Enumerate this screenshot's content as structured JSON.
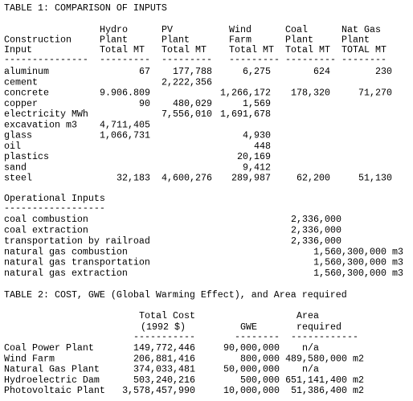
{
  "table1": {
    "title": "TABLE 1: COMPARISON OF INPUTS",
    "columns": [
      [
        "Construction",
        "Input"
      ],
      [
        "Hydro",
        "Plant",
        "Total MT"
      ],
      [
        "PV",
        "Plant",
        "Total MT"
      ],
      [
        "Wind",
        "Farm",
        "Total MT"
      ],
      [
        "Coal",
        "Plant",
        "Total MT"
      ],
      [
        "Nat Gas",
        "Plant",
        "TOTAL MT"
      ]
    ],
    "rule": [
      "---------------",
      "---------",
      "---------",
      "---------",
      "---------",
      "--------"
    ],
    "rows": [
      [
        "aluminum",
        "67",
        "177,788",
        "6,275",
        "624",
        "230"
      ],
      [
        "cement",
        null,
        "2,222,356",
        null,
        null,
        null
      ],
      [
        "concrete",
        "9.906.809",
        null,
        "1,266,172",
        "178,320",
        "71,270"
      ],
      [
        "copper",
        "90",
        "480,029",
        "1,569",
        null,
        null
      ],
      [
        "electricity MWh",
        null,
        "7,556,010",
        "1,691,678",
        null,
        null
      ],
      [
        "excavation m3",
        "4,711,405",
        null,
        null,
        null,
        null
      ],
      [
        "glass",
        "1,066,731",
        null,
        "4,930",
        null,
        null
      ],
      [
        "oil",
        null,
        null,
        "448",
        null,
        null
      ],
      [
        "plastics",
        null,
        null,
        "20,169",
        null,
        null
      ],
      [
        "sand",
        null,
        null,
        "9,412",
        null,
        null
      ],
      [
        "steel",
        "32,183",
        "4,600,276",
        "289,987",
        "62,200",
        "51,130"
      ]
    ]
  },
  "operational": {
    "title": "Operational Inputs",
    "rule": "------------------",
    "rows": [
      [
        "coal combustion",
        "2,336,000"
      ],
      [
        "coal extraction",
        "2,336,000"
      ],
      [
        "transportation by railroad",
        "2,336,000"
      ],
      [
        "natural gas combustion",
        "1,560,300,000 m3"
      ],
      [
        "natural gas transportation",
        "1,560,300,000 m3"
      ],
      [
        "natural gas extraction",
        "1,560,300,000 m3"
      ]
    ]
  },
  "table2": {
    "title": "TABLE 2: COST, GWE (Global Warming Effect), and Area required",
    "columns": [
      [
        "Total Cost",
        "(1992 $)"
      ],
      [
        "GWE"
      ],
      [
        "Area",
        "required"
      ]
    ],
    "rule": [
      "-----------",
      "--------",
      "------------"
    ],
    "rows": [
      [
        "Coal Power Plant",
        "149,772,446",
        "90,000,000",
        "n/a"
      ],
      [
        "Wind Farm",
        "206,881,416",
        "800,000",
        "489,580,000 m2"
      ],
      [
        "Natural Gas Plant",
        "374,033,481",
        "50,000,000",
        "n/a"
      ],
      [
        "Hydroelectric Dam",
        "503,240,216",
        "500,000",
        "651,141,400 m2"
      ],
      [
        "Photovoltaic Plant",
        "3,578,457,990",
        "10,000,000",
        "51,386,400 m2"
      ]
    ]
  }
}
